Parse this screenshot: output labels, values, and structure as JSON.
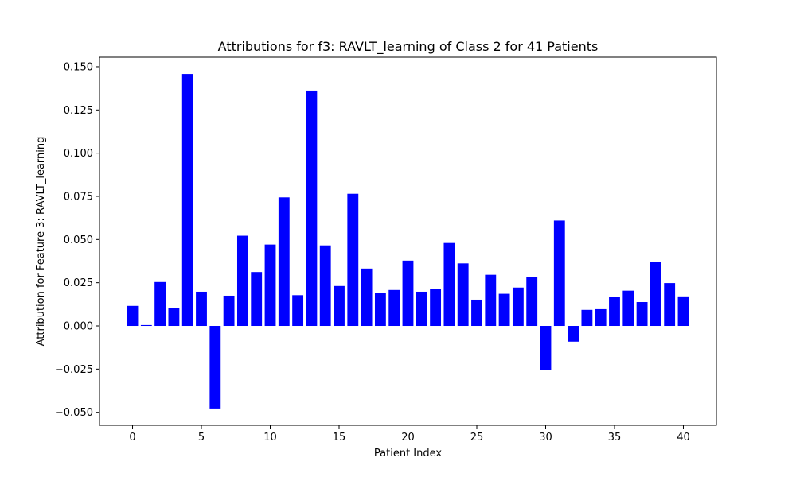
{
  "chart_data": {
    "type": "bar",
    "title": "Attributions for f3: RAVLT_learning of Class 2 for 41 Patients",
    "xlabel": "Patient Index",
    "ylabel": "Attribution for Feature 3: RAVLT_learning",
    "bar_color": "#0000ff",
    "xlim": [
      -2.4,
      42.4
    ],
    "ylim": [
      -0.0575,
      0.1555
    ],
    "xticks": [
      0,
      5,
      10,
      15,
      20,
      25,
      30,
      35,
      40
    ],
    "xtick_labels": [
      "0",
      "5",
      "10",
      "15",
      "20",
      "25",
      "30",
      "35",
      "40"
    ],
    "yticks": [
      -0.05,
      -0.025,
      0.0,
      0.025,
      0.05,
      0.075,
      0.1,
      0.125,
      0.15
    ],
    "ytick_labels": [
      "−0.050",
      "−0.025",
      "0.000",
      "0.025",
      "0.050",
      "0.075",
      "0.100",
      "0.125",
      "0.150"
    ],
    "grid": false,
    "x": [
      0,
      1,
      2,
      3,
      4,
      5,
      6,
      7,
      8,
      9,
      10,
      11,
      12,
      13,
      14,
      15,
      16,
      17,
      18,
      19,
      20,
      21,
      22,
      23,
      24,
      25,
      26,
      27,
      28,
      29,
      30,
      31,
      32,
      33,
      34,
      35,
      36,
      37,
      38,
      39,
      40
    ],
    "values": [
      0.0116,
      0.0005,
      0.0254,
      0.0102,
      0.1458,
      0.0198,
      -0.0478,
      0.0175,
      0.0522,
      0.0312,
      0.0471,
      0.0744,
      0.0178,
      0.1362,
      0.0466,
      0.0231,
      0.0765,
      0.0332,
      0.0189,
      0.0208,
      0.0378,
      0.0198,
      0.0216,
      0.048,
      0.0362,
      0.0152,
      0.0296,
      0.0186,
      0.0222,
      0.0285,
      -0.0254,
      0.061,
      -0.0091,
      0.0093,
      0.0097,
      0.0168,
      0.0204,
      0.0138,
      0.0372,
      0.0248,
      0.0171
    ]
  }
}
